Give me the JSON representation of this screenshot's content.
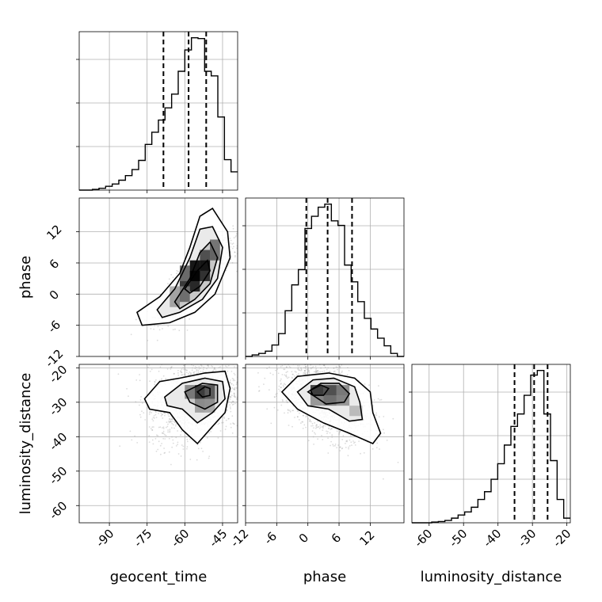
{
  "chart_data": {
    "type": "corner",
    "parameters": [
      {
        "name": "geocent_time",
        "label": "geocent_time",
        "range": [
          -102,
          -39
        ],
        "ticks": [
          -90,
          -75,
          -60,
          -45
        ],
        "quantiles": [
          -68.5,
          -58.5,
          -51.5
        ]
      },
      {
        "name": "phase",
        "label": "phase",
        "range": [
          -12,
          18.5
        ],
        "ticks": [
          -12,
          -6,
          0,
          6,
          12
        ],
        "quantiles": [
          -0.3,
          3.8,
          8.5
        ]
      },
      {
        "name": "luminosity_distance",
        "label": "luminosity_distance",
        "range": [
          -65,
          -19
        ],
        "ticks": [
          -60,
          -50,
          -40,
          -30,
          -20
        ],
        "quantiles": [
          -35.2,
          -29.5,
          -25.6
        ]
      }
    ],
    "diagonal_tick_labels": {
      "geocent_time": [
        "-90",
        "-75",
        "-60",
        "-45"
      ],
      "phase": [
        "-12",
        "-6",
        "0",
        "6",
        "12"
      ],
      "luminosity_distance": [
        "-60",
        "-50",
        "-40",
        "-30",
        "-20"
      ]
    },
    "marginals": [
      {
        "param": "geocent_time",
        "bin_edges": [
          -102,
          -99.375,
          -96.75,
          -94.125,
          -91.5,
          -88.875,
          -86.25,
          -83.625,
          -81,
          -78.375,
          -75.75,
          -73.125,
          -70.5,
          -67.875,
          -65.25,
          -62.625,
          -60,
          -57.375,
          -54.75,
          -52.125,
          -49.5,
          -46.875,
          -44.25,
          -41.625,
          -39
        ],
        "counts": [
          0,
          0,
          0.5,
          1.2,
          2.5,
          4,
          6.5,
          9.5,
          13.5,
          19.5,
          30,
          38,
          46,
          54,
          63,
          78,
          92,
          100,
          99.5,
          78,
          75,
          48,
          20,
          12
        ]
      },
      {
        "param": "phase",
        "bin_edges": [
          -12,
          -10.729,
          -9.458,
          -8.188,
          -6.917,
          -5.646,
          -4.375,
          -3.104,
          -1.833,
          -0.563,
          0.708,
          1.979,
          3.25,
          4.521,
          5.792,
          7.063,
          8.333,
          9.604,
          10.875,
          12.146,
          13.417,
          14.688,
          15.958,
          17.229,
          18.5
        ],
        "counts": [
          0,
          1,
          2,
          3.5,
          7.5,
          15,
          30,
          47,
          57,
          84,
          92,
          98,
          100,
          89,
          86,
          60,
          49,
          36,
          25,
          18,
          12,
          7,
          2,
          0
        ]
      },
      {
        "param": "luminosity_distance",
        "bin_edges": [
          -65,
          -63.083,
          -61.167,
          -59.25,
          -57.333,
          -55.417,
          -53.5,
          -51.583,
          -49.667,
          -47.75,
          -45.833,
          -43.917,
          -42,
          -40.083,
          -38.167,
          -36.25,
          -34.333,
          -32.417,
          -30.5,
          -28.583,
          -26.667,
          -24.75,
          -22.833,
          -20.917,
          -19
        ],
        "counts": [
          0,
          0,
          0,
          0.5,
          0.8,
          1.5,
          3,
          5,
          7,
          10,
          15,
          20,
          28,
          38,
          50,
          62,
          70,
          82,
          95,
          98,
          70,
          40,
          15,
          3
        ]
      }
    ],
    "pairs": [
      {
        "x": "geocent_time",
        "y": "phase",
        "contour_levels": [
          "0.5σ",
          "1σ",
          "1.5σ",
          "2σ"
        ],
        "density_peak": {
          "x": -56,
          "y": 3
        },
        "correlation": "positive"
      },
      {
        "x": "geocent_time",
        "y": "luminosity_distance",
        "contour_levels": [
          "0.5σ",
          "1σ",
          "1.5σ",
          "2σ"
        ],
        "density_peak": {
          "x": -52,
          "y": -27
        }
      },
      {
        "x": "phase",
        "y": "luminosity_distance",
        "contour_levels": [
          "0.5σ",
          "1σ",
          "1.5σ",
          "2σ"
        ],
        "density_peak": {
          "x": 2,
          "y": -27
        }
      }
    ],
    "grid": true,
    "colors": {
      "ink": "#000000",
      "grid": "#b0b0b0",
      "scatter": "#9a9a9a",
      "background": "#ffffff"
    }
  }
}
